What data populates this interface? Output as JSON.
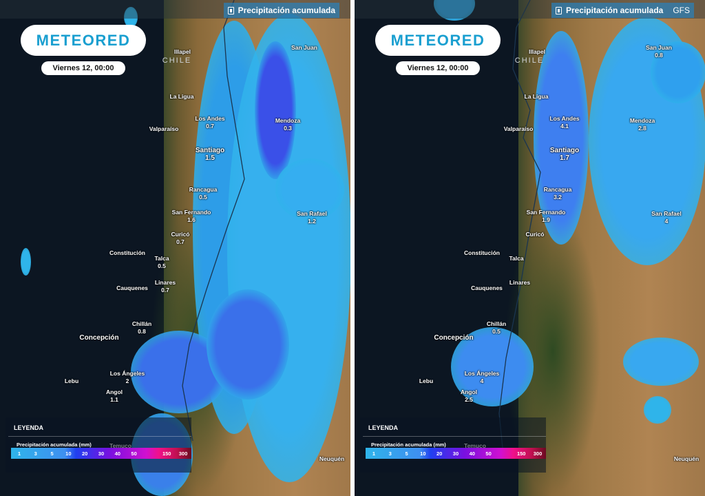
{
  "panels": [
    {
      "header": {
        "title": "Precipitación acumulada",
        "model": ""
      },
      "logo": "METEORED",
      "date": "Viernes 12, 00:00",
      "country": "CHILE",
      "cities": [
        {
          "name": "Illapel",
          "value": ""
        },
        {
          "name": "La Ligua",
          "value": ""
        },
        {
          "name": "Los Andes",
          "value": "0.7"
        },
        {
          "name": "Valparaíso",
          "value": ""
        },
        {
          "name": "Santiago",
          "value": "1.5"
        },
        {
          "name": "Rancagua",
          "value": "0.5"
        },
        {
          "name": "San Fernando",
          "value": "1.6"
        },
        {
          "name": "Curicó",
          "value": "0.7"
        },
        {
          "name": "Constitución",
          "value": ""
        },
        {
          "name": "Talca",
          "value": "0.5"
        },
        {
          "name": "Cauquenes",
          "value": ""
        },
        {
          "name": "Linares",
          "value": "0.7"
        },
        {
          "name": "Chillán",
          "value": "0.8"
        },
        {
          "name": "Concepción",
          "value": ""
        },
        {
          "name": "Los Ángeles",
          "value": "2"
        },
        {
          "name": "Lebu",
          "value": ""
        },
        {
          "name": "Angol",
          "value": "1.1"
        },
        {
          "name": "San Juan",
          "value": ""
        },
        {
          "name": "Mendoza",
          "value": "0.3"
        },
        {
          "name": "San Rafael",
          "value": "1.2"
        },
        {
          "name": "Temuco",
          "value": ""
        },
        {
          "name": "Neuquén",
          "value": ""
        }
      ]
    },
    {
      "header": {
        "title": "Precipitación acumulada",
        "model": "GFS"
      },
      "logo": "METEORED",
      "date": "Viernes 12, 00:00",
      "country": "CHILE",
      "cities": [
        {
          "name": "Illapel",
          "value": ""
        },
        {
          "name": "La Ligua",
          "value": ""
        },
        {
          "name": "Los Andes",
          "value": "4.1"
        },
        {
          "name": "Valparaíso",
          "value": ""
        },
        {
          "name": "Santiago",
          "value": "1.7"
        },
        {
          "name": "Rancagua",
          "value": "3.2"
        },
        {
          "name": "San Fernando",
          "value": "1.9"
        },
        {
          "name": "Curicó",
          "value": ""
        },
        {
          "name": "Constitución",
          "value": ""
        },
        {
          "name": "Talca",
          "value": ""
        },
        {
          "name": "Cauquenes",
          "value": ""
        },
        {
          "name": "Linares",
          "value": ""
        },
        {
          "name": "Chillán",
          "value": "0.5"
        },
        {
          "name": "Concepción",
          "value": ""
        },
        {
          "name": "Los Ángeles",
          "value": "4"
        },
        {
          "name": "Lebu",
          "value": ""
        },
        {
          "name": "Angol",
          "value": "2.5"
        },
        {
          "name": "San Juan",
          "value": "0.8"
        },
        {
          "name": "Mendoza",
          "value": "2.8"
        },
        {
          "name": "San Rafael",
          "value": "4"
        },
        {
          "name": "Temuco",
          "value": ""
        },
        {
          "name": "Neuquén",
          "value": ""
        }
      ]
    }
  ],
  "legend": {
    "title": "LEYENDA",
    "subtitle": "Precipitación acumulada (mm)",
    "scale": [
      "1",
      "3",
      "5",
      "10",
      "20",
      "30",
      "40",
      "50",
      "",
      "150",
      "300"
    ]
  },
  "icons": {
    "header": "precipitation-gauge-icon"
  },
  "colors": {
    "light_rain": "#2fb4ea",
    "medium_rain": "#3e6ff0",
    "heavy_rain": "#7a10e0",
    "brand": "#1a9fd0"
  }
}
